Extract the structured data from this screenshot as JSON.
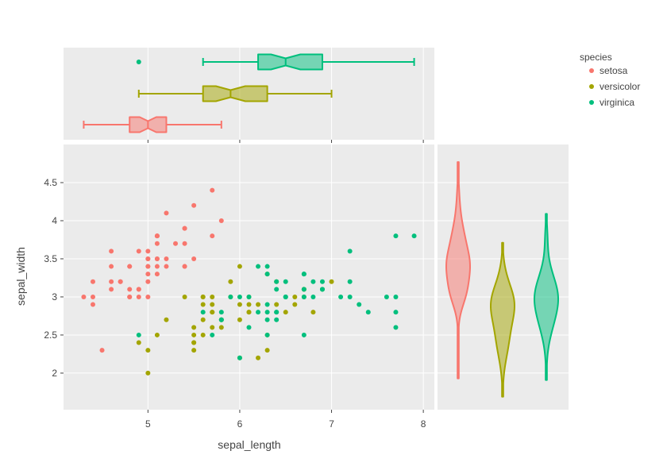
{
  "chart_data": {
    "type": "scatter",
    "xlabel": "sepal_length",
    "ylabel": "sepal_width",
    "xlim": [
      4.08,
      8.12
    ],
    "ylim": [
      1.52,
      5.0
    ],
    "x_ticks": [
      5,
      6,
      7,
      8
    ],
    "y_ticks": [
      2,
      2.5,
      3,
      3.5,
      4,
      4.5
    ],
    "x_tick_labels": [
      "5",
      "6",
      "7",
      "8"
    ],
    "y_tick_labels": [
      "2",
      "2.5",
      "3",
      "3.5",
      "4",
      "4.5"
    ],
    "legend": {
      "title": "species",
      "placement": "top-right",
      "entries": [
        "setosa",
        "versicolor",
        "virginica"
      ]
    },
    "colors": {
      "setosa": "#F8766D",
      "versicolor": "#A3A500",
      "virginica": "#00BF7D"
    },
    "grid": true,
    "series": [
      {
        "name": "setosa",
        "x": [
          5.1,
          4.9,
          4.7,
          4.6,
          5.0,
          5.4,
          4.6,
          5.0,
          4.4,
          4.9,
          5.4,
          4.8,
          4.8,
          4.3,
          5.8,
          5.7,
          5.4,
          5.1,
          5.7,
          5.1,
          5.4,
          5.1,
          4.6,
          5.1,
          4.8,
          5.0,
          5.0,
          5.2,
          5.2,
          4.7,
          4.8,
          5.4,
          5.2,
          5.5,
          4.9,
          5.0,
          5.5,
          4.9,
          4.4,
          5.1,
          5.0,
          4.5,
          4.4,
          5.0,
          5.1,
          4.8,
          5.1,
          4.6,
          5.3,
          5.0
        ],
        "y": [
          3.5,
          3.0,
          3.2,
          3.1,
          3.6,
          3.9,
          3.4,
          3.4,
          2.9,
          3.1,
          3.7,
          3.4,
          3.0,
          3.0,
          4.0,
          4.4,
          3.9,
          3.5,
          3.8,
          3.8,
          3.4,
          3.7,
          3.6,
          3.3,
          3.4,
          3.0,
          3.4,
          3.5,
          3.4,
          3.2,
          3.1,
          3.4,
          4.1,
          4.2,
          3.1,
          3.2,
          3.5,
          3.6,
          3.0,
          3.4,
          3.5,
          2.3,
          3.2,
          3.5,
          3.8,
          3.0,
          3.8,
          3.2,
          3.7,
          3.3
        ]
      },
      {
        "name": "versicolor",
        "x": [
          7.0,
          6.4,
          6.9,
          5.5,
          6.5,
          5.7,
          6.3,
          4.9,
          6.6,
          5.2,
          5.0,
          5.9,
          6.0,
          6.1,
          5.6,
          6.7,
          5.6,
          5.8,
          6.2,
          5.6,
          5.9,
          6.1,
          6.3,
          6.1,
          6.4,
          6.6,
          6.8,
          6.7,
          6.0,
          5.7,
          5.5,
          5.5,
          5.8,
          6.0,
          5.4,
          6.0,
          6.7,
          6.3,
          5.6,
          5.5,
          5.5,
          6.1,
          5.8,
          5.0,
          5.6,
          5.7,
          5.7,
          6.2,
          5.1,
          5.7
        ],
        "y": [
          3.2,
          3.2,
          3.1,
          2.3,
          2.8,
          2.8,
          3.3,
          2.4,
          2.9,
          2.7,
          2.0,
          3.0,
          2.2,
          2.9,
          2.9,
          3.1,
          3.0,
          2.7,
          2.2,
          2.5,
          3.2,
          2.8,
          2.5,
          2.8,
          2.9,
          3.0,
          2.8,
          3.0,
          2.9,
          2.6,
          2.4,
          2.4,
          2.7,
          2.7,
          3.0,
          3.4,
          3.1,
          2.3,
          3.0,
          2.5,
          2.6,
          3.0,
          2.6,
          2.3,
          2.7,
          3.0,
          2.9,
          2.9,
          2.5,
          2.8
        ]
      },
      {
        "name": "virginica",
        "x": [
          6.3,
          5.8,
          7.1,
          6.3,
          6.5,
          7.6,
          4.9,
          7.3,
          6.7,
          7.2,
          6.5,
          6.4,
          6.8,
          5.7,
          5.8,
          6.4,
          6.5,
          7.7,
          7.7,
          6.0,
          6.9,
          5.6,
          7.7,
          6.3,
          6.7,
          7.2,
          6.2,
          6.1,
          6.4,
          7.2,
          7.4,
          7.9,
          6.4,
          6.3,
          6.1,
          7.7,
          6.3,
          6.4,
          6.0,
          6.9,
          6.7,
          6.9,
          5.8,
          6.8,
          6.7,
          6.7,
          6.3,
          6.5,
          6.2,
          5.9
        ],
        "y": [
          3.3,
          2.7,
          3.0,
          2.9,
          3.0,
          3.0,
          2.5,
          2.9,
          2.5,
          3.6,
          3.2,
          2.7,
          3.0,
          2.5,
          2.8,
          3.2,
          3.0,
          3.8,
          2.6,
          2.2,
          3.2,
          2.8,
          2.8,
          2.7,
          3.3,
          3.2,
          2.8,
          3.0,
          2.8,
          3.0,
          2.8,
          3.8,
          2.8,
          2.8,
          2.6,
          3.0,
          3.4,
          3.1,
          3.0,
          3.1,
          3.1,
          3.1,
          2.7,
          3.2,
          3.3,
          3.0,
          2.5,
          3.0,
          3.4,
          3.0
        ]
      }
    ],
    "marginal_x": {
      "type": "box",
      "notched": true,
      "variable": "sepal_length",
      "boxes": [
        {
          "name": "setosa",
          "min": 4.3,
          "q1": 4.8,
          "median": 5.0,
          "q3": 5.2,
          "max": 5.8,
          "notch_low": 4.91,
          "notch_high": 5.09,
          "outliers": []
        },
        {
          "name": "versicolor",
          "min": 4.9,
          "q1": 5.6,
          "median": 5.9,
          "q3": 6.3,
          "max": 7.0,
          "notch_low": 5.74,
          "notch_high": 6.06,
          "outliers": []
        },
        {
          "name": "virginica",
          "min": 5.6,
          "q1": 6.2,
          "median": 6.5,
          "q3": 6.9,
          "max": 7.9,
          "notch_low": 6.34,
          "notch_high": 6.66,
          "outliers": [
            4.9
          ]
        }
      ]
    },
    "marginal_y": {
      "type": "violin",
      "variable": "sepal_width",
      "violins": [
        {
          "name": "setosa",
          "min": 1.93,
          "max": 4.77,
          "median": 3.4
        },
        {
          "name": "versicolor",
          "min": 1.69,
          "max": 3.71,
          "median": 2.8
        },
        {
          "name": "virginica",
          "min": 1.91,
          "max": 4.09,
          "median": 3.0
        }
      ]
    }
  }
}
